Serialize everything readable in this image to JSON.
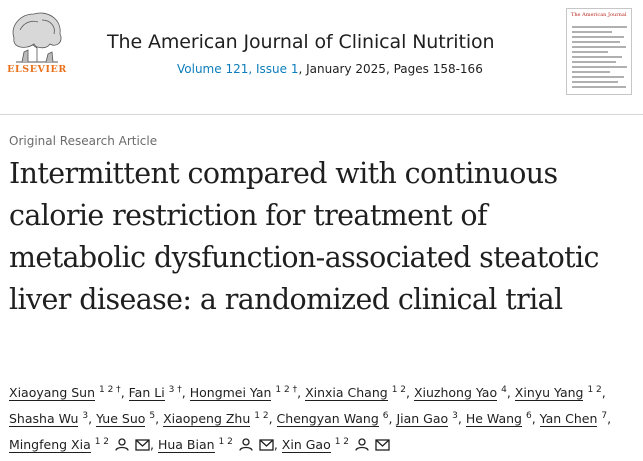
{
  "publisher": {
    "name": "ELSEVIER",
    "logo_icon": "elsevier-tree-icon"
  },
  "journal": {
    "title": "The American Journal of Clinical Nutrition",
    "volume_issue": "Volume 121, Issue 1",
    "date_pages": ", January 2025, Pages 158-166",
    "cover_name": "The American Journal of CLINICAL NUTRITION"
  },
  "article": {
    "type": "Original Research Article",
    "title": "Intermittent compared with continuous calorie restriction for treatment of metabolic dysfunction-associated steatotic liver disease: a randomized clinical trial"
  },
  "authors": [
    {
      "name": "Xiaoyang Sun",
      "sup": "1 2 †"
    },
    {
      "name": "Fan Li",
      "sup": "3 †"
    },
    {
      "name": "Hongmei Yan",
      "sup": "1 2 †"
    },
    {
      "name": "Xinxia Chang",
      "sup": "1 2"
    },
    {
      "name": "Xiuzhong Yao",
      "sup": "4"
    },
    {
      "name": "Xinyu Yang",
      "sup": "1 2"
    },
    {
      "name": "Shasha Wu",
      "sup": "3"
    },
    {
      "name": "Yue Suo",
      "sup": "5"
    },
    {
      "name": "Xiaopeng Zhu",
      "sup": "1 2"
    },
    {
      "name": "Chengyan Wang",
      "sup": "6"
    },
    {
      "name": "Jian Gao",
      "sup": "3"
    },
    {
      "name": "He Wang",
      "sup": "6"
    },
    {
      "name": "Yan Chen",
      "sup": "7"
    },
    {
      "name": "Mingfeng Xia",
      "sup": "1 2",
      "icons": [
        "person-icon",
        "envelope-icon"
      ]
    },
    {
      "name": "Hua Bian",
      "sup": "1 2",
      "icons": [
        "person-icon",
        "envelope-icon"
      ]
    },
    {
      "name": "Xin Gao",
      "sup": "1 2",
      "icons": [
        "person-icon",
        "envelope-icon"
      ]
    }
  ],
  "colors": {
    "link": "#0c7dbb",
    "publisher": "#e9711c",
    "text": "#1f1f1f",
    "muted": "#6b6b6b"
  }
}
